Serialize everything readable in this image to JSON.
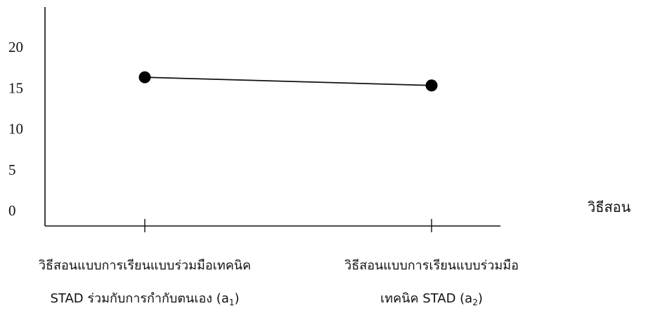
{
  "chart_data": {
    "type": "line",
    "title": "",
    "xlabel": "วิธีสอน",
    "ylabel": "",
    "ylim": [
      0,
      20
    ],
    "yticks": [
      0,
      5,
      10,
      15,
      20
    ],
    "grid": false,
    "legend": "none",
    "categories": [
      {
        "line1": "วิธีสอนแบบการเรียนแบบร่วมมือเทคนิค",
        "line2_main": "STAD ร่วมกับการกำกับตนเอง (a",
        "line2_sub": "1",
        "line2_end": ")"
      },
      {
        "line1": "วิธีสอนแบบการเรียนแบบร่วมมือ",
        "line2_main": "เทคนิค STAD (a",
        "line2_sub": "2",
        "line2_end": ")"
      }
    ],
    "series": [
      {
        "values": [
          16.3,
          15.3
        ]
      }
    ],
    "colors": {
      "line": "#111111",
      "marker": "#000000",
      "axis": "#111111"
    }
  }
}
